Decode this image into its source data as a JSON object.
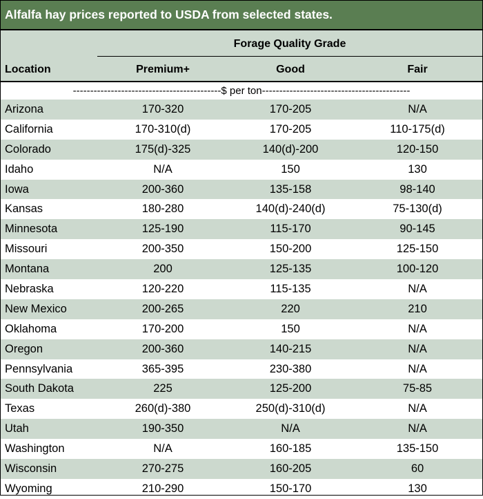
{
  "title": "Alfalfa hay prices reported to USDA from selected states.",
  "header": {
    "group_label": "Forage Quality Grade",
    "location_label": "Location",
    "columns": [
      "Premium+",
      "Good",
      "Fair"
    ]
  },
  "units_row": "-------------------------------------------$ per ton-------------------------------------------",
  "colors": {
    "title_bg": "#5a7e52",
    "band": "#ccd9ce"
  },
  "rows": [
    {
      "location": "Arizona",
      "premium": "170-320",
      "good": "170-205",
      "fair": "N/A"
    },
    {
      "location": "California",
      "premium": "170-310(d)",
      "good": "170-205",
      "fair": "110-175(d)"
    },
    {
      "location": "Colorado",
      "premium": "175(d)-325",
      "good": "140(d)-200",
      "fair": "120-150"
    },
    {
      "location": "Idaho",
      "premium": "N/A",
      "good": "150",
      "fair": "130"
    },
    {
      "location": "Iowa",
      "premium": "200-360",
      "good": "135-158",
      "fair": "98-140"
    },
    {
      "location": "Kansas",
      "premium": "180-280",
      "good": "140(d)-240(d)",
      "fair": "75-130(d)"
    },
    {
      "location": "Minnesota",
      "premium": "125-190",
      "good": "115-170",
      "fair": "90-145"
    },
    {
      "location": "Missouri",
      "premium": "200-350",
      "good": "150-200",
      "fair": "125-150"
    },
    {
      "location": "Montana",
      "premium": "200",
      "good": "125-135",
      "fair": "100-120"
    },
    {
      "location": "Nebraska",
      "premium": "120-220",
      "good": "115-135",
      "fair": "N/A"
    },
    {
      "location": "New Mexico",
      "premium": "200-265",
      "good": "220",
      "fair": "210"
    },
    {
      "location": "Oklahoma",
      "premium": "170-200",
      "good": "150",
      "fair": "N/A"
    },
    {
      "location": "Oregon",
      "premium": "200-360",
      "good": "140-215",
      "fair": "N/A"
    },
    {
      "location": "Pennsylvania",
      "premium": "365-395",
      "good": "230-380",
      "fair": "N/A"
    },
    {
      "location": "South Dakota",
      "premium": "225",
      "good": "125-200",
      "fair": "75-85"
    },
    {
      "location": "Texas",
      "premium": "260(d)-380",
      "good": "250(d)-310(d)",
      "fair": "N/A"
    },
    {
      "location": "Utah",
      "premium": "190-350",
      "good": "N/A",
      "fair": "N/A"
    },
    {
      "location": "Washington",
      "premium": "N/A",
      "good": "160-185",
      "fair": "135-150"
    },
    {
      "location": "Wisconsin",
      "premium": "270-275",
      "good": "160-205",
      "fair": "60"
    },
    {
      "location": "Wyoming",
      "premium": "210-290",
      "good": "150-170",
      "fair": "130"
    }
  ]
}
